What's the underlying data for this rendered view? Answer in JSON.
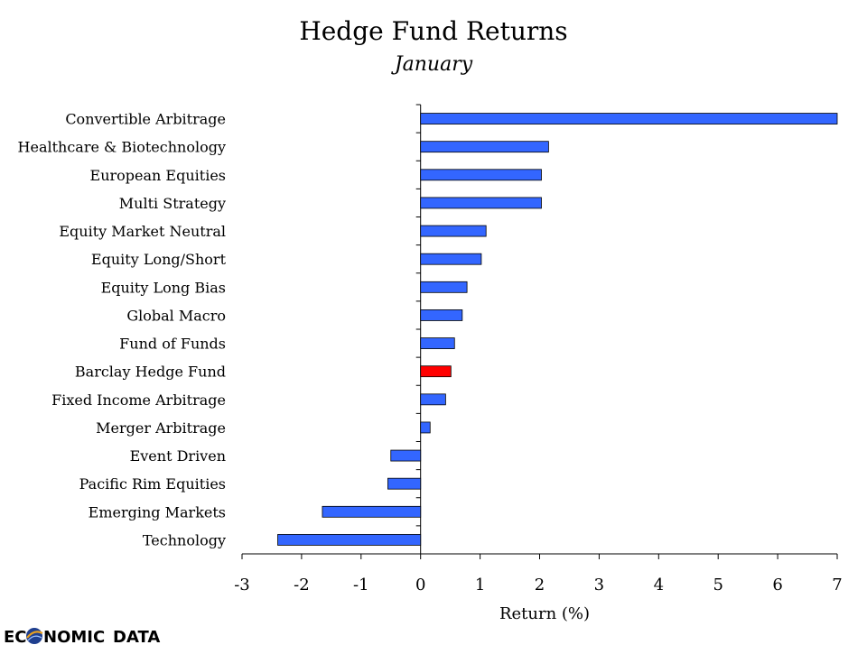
{
  "chart_data": {
    "type": "bar",
    "orientation": "horizontal",
    "title": "Hedge Fund Returns",
    "subtitle": "January",
    "xlabel": "Return (%)",
    "ylabel": "",
    "xlim": [
      -3,
      7
    ],
    "xticks": [
      -3,
      -2,
      -1,
      0,
      1,
      2,
      3,
      4,
      5,
      6,
      7
    ],
    "grid": false,
    "legend": "none",
    "categories": [
      "Convertible Arbitrage",
      "Healthcare & Biotechnology",
      "European Equities",
      "Multi Strategy",
      "Equity Market Neutral",
      "Equity Long/Short",
      "Equity Long Bias",
      "Global Macro",
      "Fund of Funds",
      "Barclay Hedge Fund",
      "Fixed Income Arbitrage",
      "Merger Arbitrage",
      "Event Driven",
      "Pacific Rim Equities",
      "Emerging Markets",
      "Technology"
    ],
    "values": [
      7.0,
      2.15,
      2.03,
      2.03,
      1.1,
      1.02,
      0.78,
      0.7,
      0.57,
      0.51,
      0.42,
      0.16,
      -0.5,
      -0.55,
      -1.65,
      -2.4
    ],
    "highlight": "Barclay Hedge Fund",
    "colors": {
      "bar": "#3366ff",
      "highlight": "#ff0000",
      "bar_edge": "#000000"
    }
  },
  "logo": {
    "text_part1": "EC",
    "text_part2": "NOMIC",
    "text_part3": "DATA",
    "color_main": "#1f3f8f",
    "color_accent": "#e8a020"
  }
}
